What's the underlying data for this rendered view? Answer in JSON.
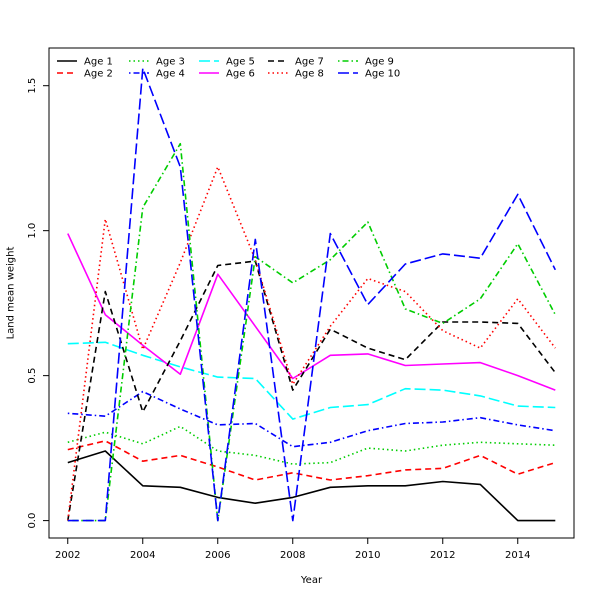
{
  "chart_data": {
    "type": "line",
    "title": "",
    "xlabel": "Year",
    "ylabel": "Land mean weight",
    "xlim": [
      2001.5,
      2015.5
    ],
    "ylim": [
      -0.06,
      1.63
    ],
    "x_ticks": [
      2002,
      2004,
      2006,
      2008,
      2010,
      2012,
      2014
    ],
    "y_ticks": [
      0.0,
      0.5,
      1.0,
      1.5
    ],
    "x_tick_labels": [
      "2002",
      "2004",
      "2006",
      "2008",
      "2010",
      "2012",
      "2014"
    ],
    "y_tick_labels": [
      "0.0",
      "0.5",
      "1.0",
      "1.5"
    ],
    "grid": false,
    "legend_position": "top-left",
    "x": [
      2002,
      2003,
      2004,
      2005,
      2006,
      2007,
      2008,
      2009,
      2010,
      2011,
      2012,
      2013,
      2014,
      2015
    ],
    "series": [
      {
        "name": "Age 1",
        "color": "#000000",
        "dash": "solid",
        "values": [
          0.2,
          0.24,
          0.12,
          0.115,
          0.08,
          0.06,
          0.08,
          0.115,
          0.12,
          0.12,
          0.135,
          0.125,
          0.0,
          0.0
        ]
      },
      {
        "name": "Age 2",
        "color": "#ff0000",
        "dash": "dashed",
        "values": [
          0.245,
          0.275,
          0.205,
          0.225,
          0.185,
          0.14,
          0.165,
          0.14,
          0.155,
          0.175,
          0.18,
          0.225,
          0.16,
          0.2
        ]
      },
      {
        "name": "Age 3",
        "color": "#00cd00",
        "dash": "dotted",
        "values": [
          0.27,
          0.305,
          0.265,
          0.325,
          0.24,
          0.225,
          0.195,
          0.2,
          0.25,
          0.24,
          0.26,
          0.27,
          0.265,
          0.26
        ]
      },
      {
        "name": "Age 4",
        "color": "#0000ff",
        "dash": "dotdash",
        "values": [
          0.37,
          0.36,
          0.445,
          0.385,
          0.33,
          0.335,
          0.255,
          0.27,
          0.31,
          0.335,
          0.34,
          0.355,
          0.33,
          0.31
        ]
      },
      {
        "name": "Age 5",
        "color": "#00ffff",
        "dash": "longdash",
        "values": [
          0.61,
          0.615,
          0.57,
          0.53,
          0.495,
          0.49,
          0.35,
          0.39,
          0.4,
          0.455,
          0.45,
          0.43,
          0.395,
          0.39
        ]
      },
      {
        "name": "Age 6",
        "color": "#ff00ff",
        "dash": "solid",
        "values": [
          0.99,
          0.71,
          0.605,
          0.505,
          0.85,
          0.67,
          0.49,
          0.57,
          0.575,
          0.535,
          0.54,
          0.545,
          0.5,
          0.45
        ]
      },
      {
        "name": "Age 7",
        "color": "#000000",
        "dash": "dashed",
        "values": [
          0.0,
          0.79,
          0.375,
          0.62,
          0.88,
          0.895,
          0.45,
          0.66,
          0.595,
          0.555,
          0.685,
          0.685,
          0.68,
          0.51
        ]
      },
      {
        "name": "Age 8",
        "color": "#ff0000",
        "dash": "dotted",
        "values": [
          0.0,
          1.04,
          0.59,
          0.89,
          1.22,
          0.9,
          0.47,
          0.67,
          0.835,
          0.79,
          0.655,
          0.595,
          0.765,
          0.595
        ]
      },
      {
        "name": "Age 9",
        "color": "#00cd00",
        "dash": "dotdash",
        "values": [
          0.0,
          0.0,
          1.08,
          1.3,
          0.0,
          0.91,
          0.82,
          0.9,
          1.03,
          0.73,
          0.68,
          0.765,
          0.955,
          0.71
        ]
      },
      {
        "name": "Age 10",
        "color": "#0000ff",
        "dash": "longdash",
        "values": [
          0.0,
          0.0,
          1.56,
          1.22,
          0.0,
          0.97,
          0.0,
          0.99,
          0.745,
          0.885,
          0.92,
          0.905,
          1.125,
          0.865
        ]
      }
    ]
  }
}
